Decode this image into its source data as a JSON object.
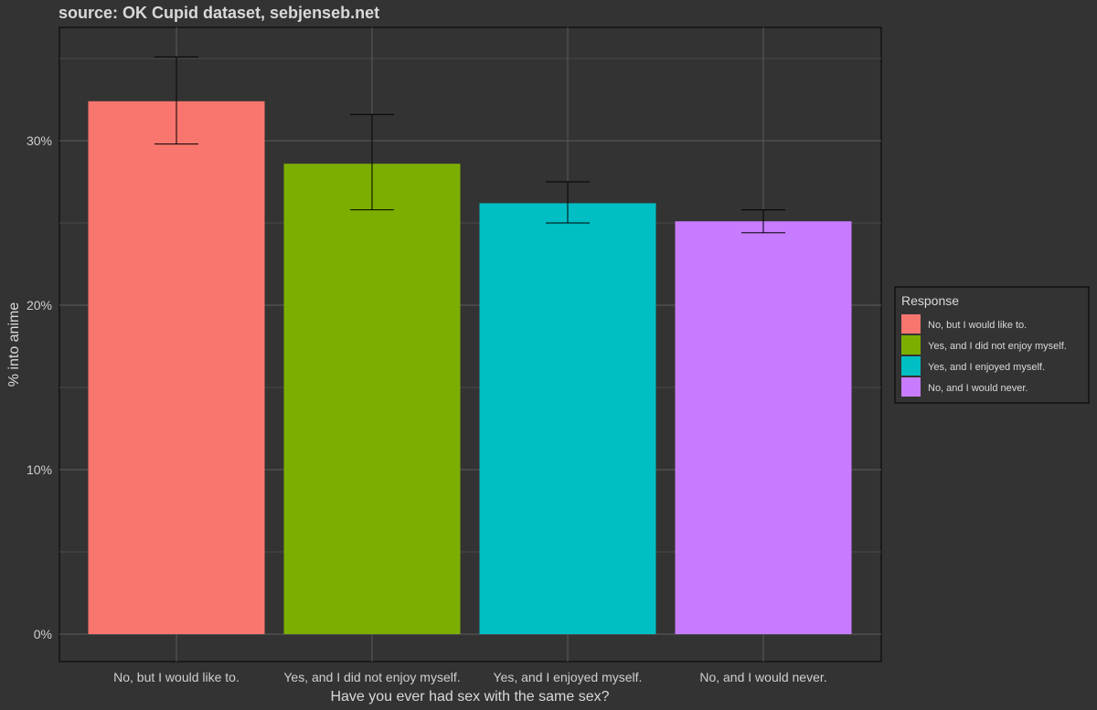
{
  "chart_data": {
    "type": "bar",
    "title": "source: OK Cupid dataset, sebjenseb.net",
    "xlabel": "Have you ever had sex with the same sex?",
    "ylabel": "% into anime",
    "categories": [
      "No, but I would like to.",
      "Yes, and I did not enjoy myself.",
      "Yes, and I enjoyed myself.",
      "No, and I would never."
    ],
    "values": [
      32.4,
      28.6,
      26.2,
      25.1
    ],
    "error_low": [
      29.8,
      25.8,
      25.0,
      24.4
    ],
    "error_high": [
      35.1,
      31.6,
      27.5,
      25.8
    ],
    "colors": [
      "#F8766D",
      "#7CAE00",
      "#00BFC4",
      "#C77CFF"
    ],
    "ylim": [
      0,
      37
    ],
    "yticks": [
      0,
      10,
      20,
      30
    ],
    "ytick_labels": [
      "0%",
      "10%",
      "20%",
      "30%"
    ],
    "grid": true,
    "legend": {
      "title": "Response",
      "placement": "right",
      "entries": [
        "No, but I would like to.",
        "Yes, and I did not enjoy myself.",
        "Yes, and I enjoyed myself.",
        "No, and I would never."
      ]
    }
  }
}
